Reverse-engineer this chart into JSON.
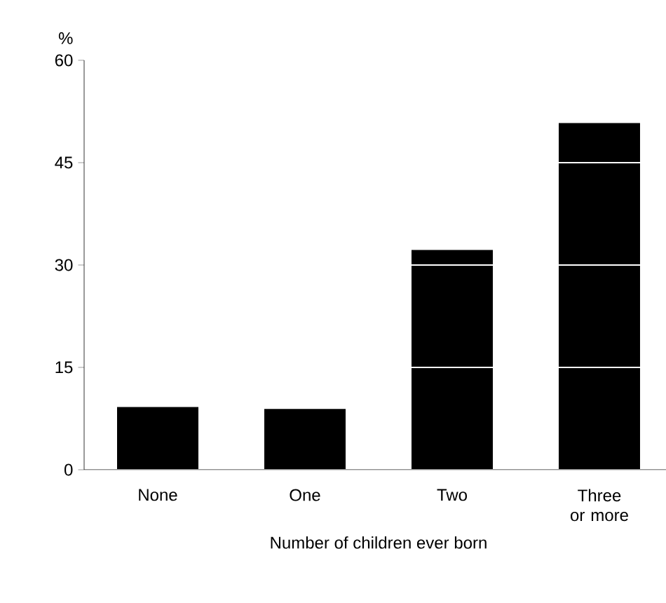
{
  "chart_data": {
    "type": "bar",
    "ylabel": "%",
    "xlabel": "Number of children ever born",
    "categories": [
      "None",
      "One",
      "Two",
      "Three or more"
    ],
    "values": [
      9.2,
      8.9,
      32.2,
      50.8
    ],
    "color": "#000000",
    "ylim": [
      0,
      60
    ],
    "yticks": [
      0,
      15,
      30,
      45,
      60
    ],
    "grid": "y"
  }
}
